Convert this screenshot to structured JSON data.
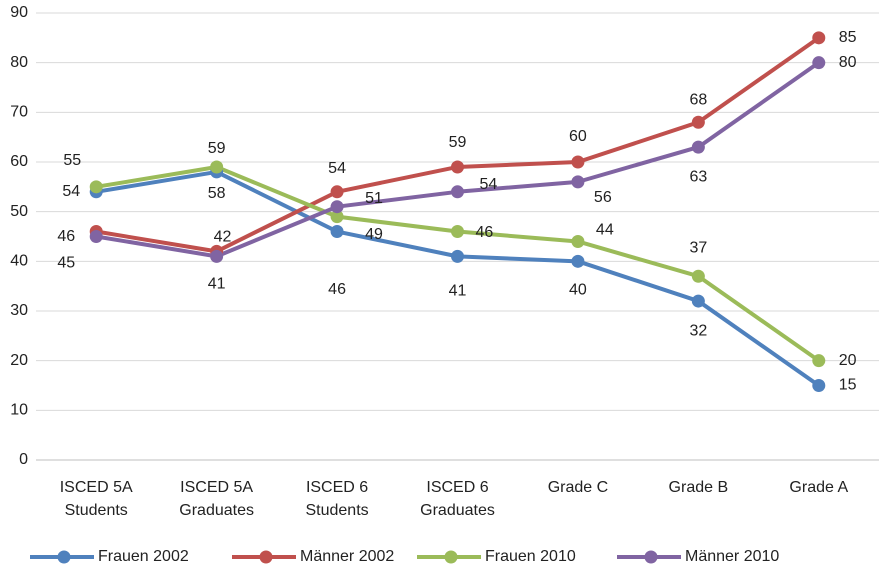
{
  "chart_data": {
    "type": "line",
    "categories": [
      "ISCED 5A\nStudents",
      "ISCED 5A\nGraduates",
      "ISCED 6\nStudents",
      "ISCED 6\nGraduates",
      "Grade C",
      "Grade B",
      "Grade A"
    ],
    "series": [
      {
        "name": "Frauen 2002",
        "color": "#4f81bd",
        "values": [
          54,
          58,
          46,
          41,
          40,
          32,
          15
        ]
      },
      {
        "name": "Männer 2002",
        "color": "#c0504d",
        "values": [
          46,
          42,
          54,
          59,
          60,
          68,
          85
        ]
      },
      {
        "name": "Frauen 2010",
        "color": "#9bbb59",
        "values": [
          55,
          59,
          49,
          46,
          44,
          37,
          20
        ]
      },
      {
        "name": "Männer 2010",
        "color": "#8064a2",
        "values": [
          45,
          41,
          51,
          54,
          56,
          63,
          80
        ]
      }
    ],
    "ylim": [
      0,
      90
    ],
    "yticks": [
      0,
      10,
      20,
      30,
      40,
      50,
      60,
      70,
      80,
      90
    ],
    "grid": true,
    "legend": "bottom"
  }
}
